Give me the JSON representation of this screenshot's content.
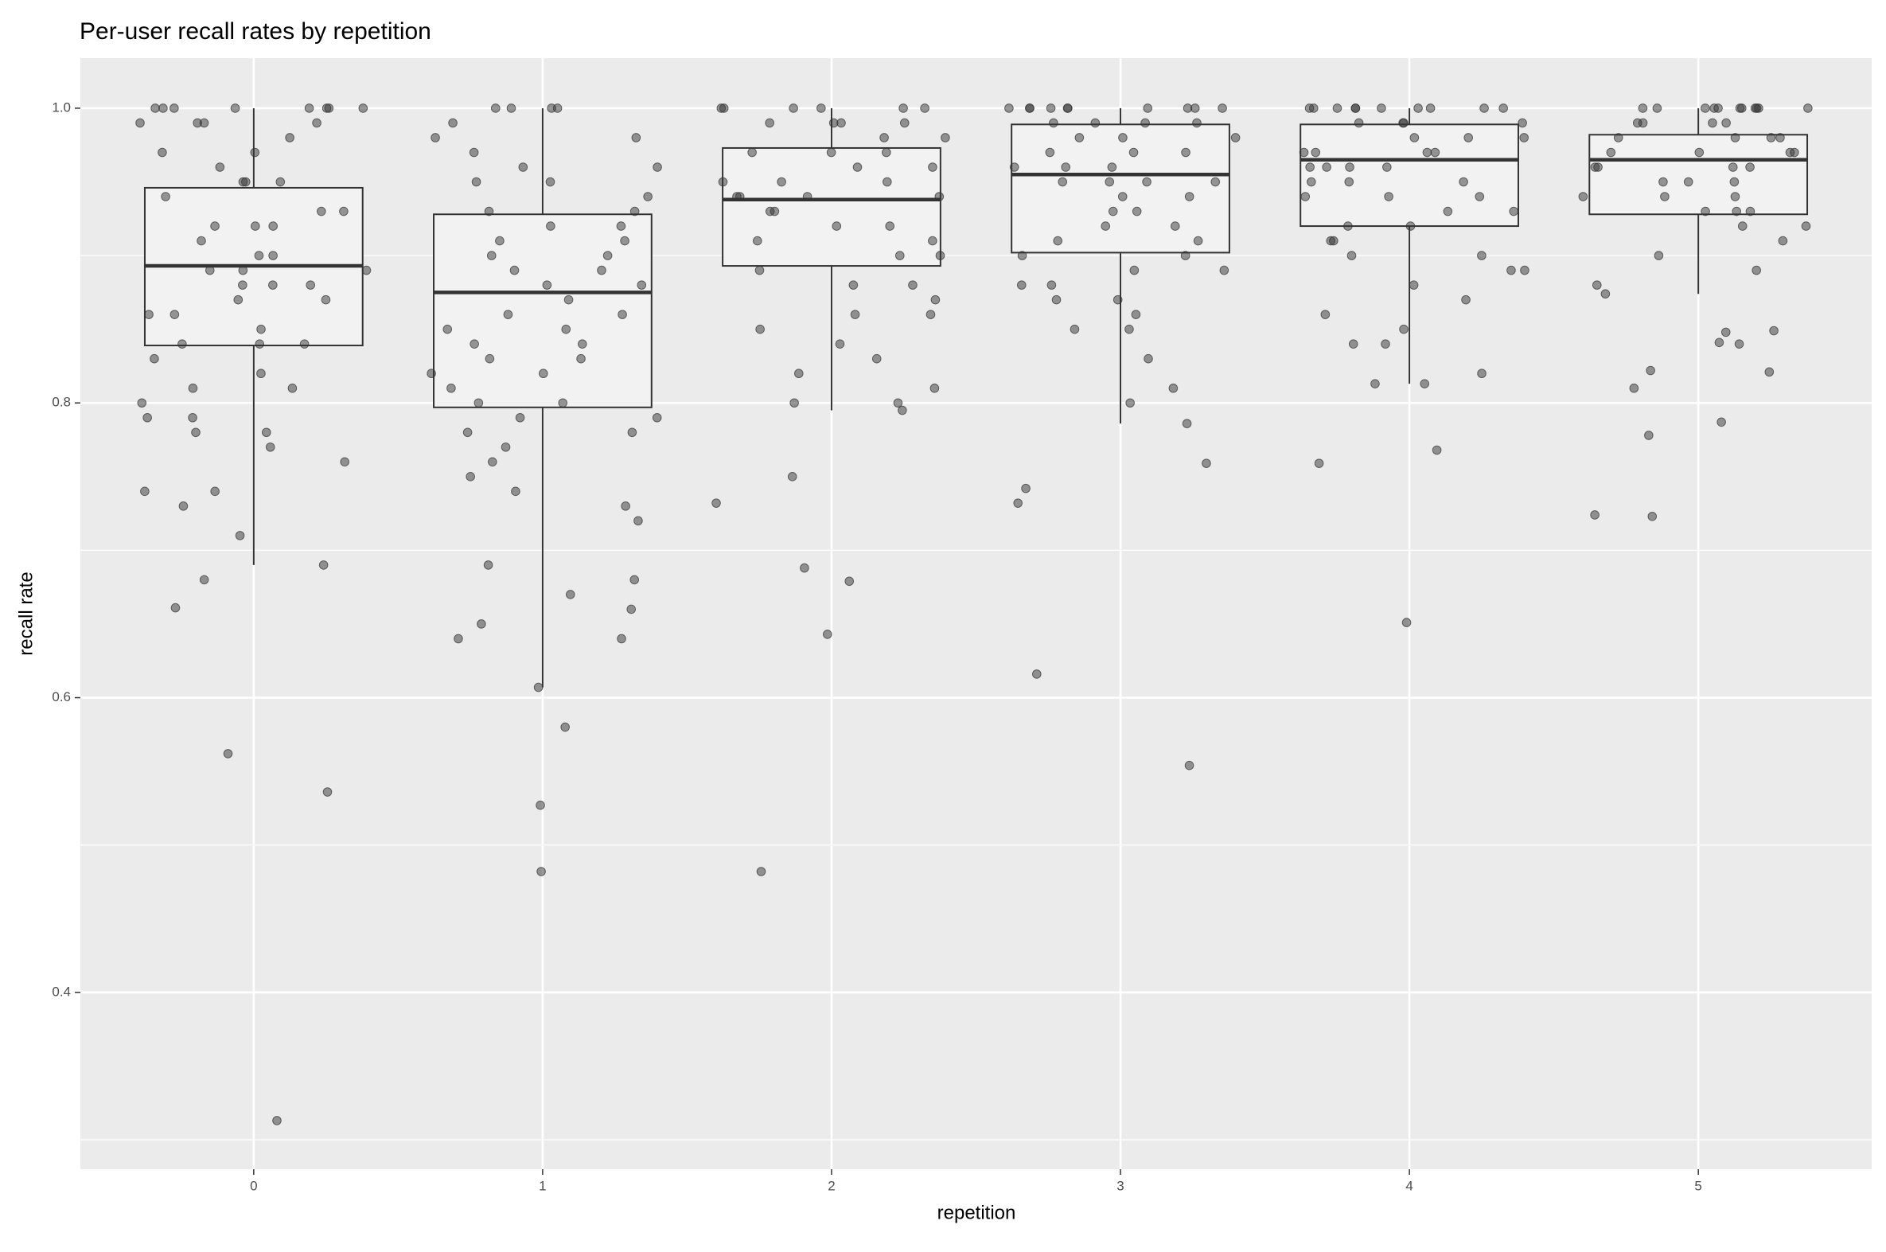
{
  "chart_data": {
    "type": "box",
    "title": "Per-user recall rates by repetition",
    "xlabel": "repetition",
    "ylabel": "recall rate",
    "categories": [
      "0",
      "1",
      "2",
      "3",
      "4",
      "5"
    ],
    "boxes": [
      {
        "lower": 0.69,
        "q1": 0.839,
        "median": 0.893,
        "q3": 0.946,
        "upper": 1.0
      },
      {
        "lower": 0.607,
        "q1": 0.797,
        "median": 0.875,
        "q3": 0.928,
        "upper": 1.0
      },
      {
        "lower": 0.795,
        "q1": 0.893,
        "median": 0.938,
        "q3": 0.973,
        "upper": 1.0
      },
      {
        "lower": 0.786,
        "q1": 0.902,
        "median": 0.955,
        "q3": 0.989,
        "upper": 1.0
      },
      {
        "lower": 0.813,
        "q1": 0.92,
        "median": 0.965,
        "q3": 0.989,
        "upper": 1.0
      },
      {
        "lower": 0.874,
        "q1": 0.928,
        "median": 0.965,
        "q3": 0.982,
        "upper": 1.0
      }
    ],
    "points": [
      [
        1,
        1,
        1,
        1,
        1,
        1,
        1,
        1,
        0.99,
        0.99,
        0.99,
        0.99,
        0.98,
        0.97,
        0.97,
        0.96,
        0.95,
        0.95,
        0.95,
        0.94,
        0.93,
        0.93,
        0.92,
        0.92,
        0.92,
        0.91,
        0.9,
        0.9,
        0.89,
        0.89,
        0.89,
        0.88,
        0.88,
        0.88,
        0.87,
        0.87,
        0.86,
        0.86,
        0.85,
        0.84,
        0.84,
        0.84,
        0.83,
        0.82,
        0.81,
        0.81,
        0.8,
        0.79,
        0.79,
        0.78,
        0.78,
        0.77,
        0.76,
        0.74,
        0.74,
        0.73,
        0.71,
        0.69,
        0.68,
        0.661,
        0.562,
        0.536,
        0.313
      ],
      [
        1,
        1,
        1,
        1,
        0.99,
        0.98,
        0.98,
        0.97,
        0.96,
        0.96,
        0.95,
        0.95,
        0.94,
        0.93,
        0.93,
        0.92,
        0.92,
        0.91,
        0.91,
        0.9,
        0.9,
        0.89,
        0.89,
        0.88,
        0.88,
        0.87,
        0.86,
        0.86,
        0.85,
        0.85,
        0.84,
        0.84,
        0.83,
        0.83,
        0.82,
        0.82,
        0.81,
        0.8,
        0.8,
        0.79,
        0.79,
        0.78,
        0.78,
        0.77,
        0.76,
        0.75,
        0.74,
        0.73,
        0.72,
        0.69,
        0.68,
        0.67,
        0.66,
        0.65,
        0.64,
        0.64,
        0.607,
        0.58,
        0.527,
        0.482
      ],
      [
        1,
        1,
        1,
        1,
        1,
        1,
        0.99,
        0.99,
        0.99,
        0.99,
        0.98,
        0.98,
        0.97,
        0.97,
        0.97,
        0.96,
        0.96,
        0.95,
        0.95,
        0.95,
        0.94,
        0.94,
        0.94,
        0.94,
        0.93,
        0.93,
        0.92,
        0.92,
        0.91,
        0.91,
        0.9,
        0.9,
        0.89,
        0.88,
        0.88,
        0.87,
        0.86,
        0.86,
        0.85,
        0.84,
        0.83,
        0.82,
        0.81,
        0.8,
        0.8,
        0.795,
        0.75,
        0.732,
        0.688,
        0.679,
        0.643,
        0.482
      ],
      [
        1,
        1,
        1,
        1,
        1,
        1,
        1,
        1,
        1,
        1,
        0.99,
        0.99,
        0.99,
        0.99,
        0.98,
        0.98,
        0.98,
        0.97,
        0.97,
        0.97,
        0.96,
        0.96,
        0.96,
        0.95,
        0.95,
        0.95,
        0.95,
        0.94,
        0.94,
        0.93,
        0.93,
        0.92,
        0.92,
        0.91,
        0.91,
        0.9,
        0.9,
        0.89,
        0.89,
        0.88,
        0.88,
        0.87,
        0.87,
        0.86,
        0.85,
        0.85,
        0.83,
        0.81,
        0.8,
        0.786,
        0.759,
        0.742,
        0.732,
        0.616,
        0.554
      ],
      [
        1,
        1,
        1,
        1,
        1,
        1,
        1,
        1,
        1,
        1,
        0.99,
        0.99,
        0.99,
        0.99,
        0.98,
        0.98,
        0.98,
        0.97,
        0.97,
        0.97,
        0.97,
        0.96,
        0.96,
        0.96,
        0.96,
        0.95,
        0.95,
        0.95,
        0.94,
        0.94,
        0.94,
        0.93,
        0.93,
        0.92,
        0.92,
        0.91,
        0.91,
        0.9,
        0.9,
        0.89,
        0.89,
        0.88,
        0.87,
        0.86,
        0.85,
        0.84,
        0.84,
        0.82,
        0.813,
        0.813,
        0.768,
        0.759,
        0.651
      ],
      [
        1,
        1,
        1,
        1,
        1,
        1,
        1,
        1,
        1,
        1,
        1,
        0.99,
        0.99,
        0.99,
        0.99,
        0.98,
        0.98,
        0.98,
        0.98,
        0.97,
        0.97,
        0.97,
        0.97,
        0.96,
        0.96,
        0.96,
        0.96,
        0.95,
        0.95,
        0.95,
        0.94,
        0.94,
        0.94,
        0.93,
        0.93,
        0.93,
        0.92,
        0.92,
        0.91,
        0.9,
        0.89,
        0.88,
        0.874,
        0.849,
        0.848,
        0.841,
        0.84,
        0.822,
        0.821,
        0.81,
        0.787,
        0.778,
        0.724,
        0.723
      ]
    ],
    "point_color": "#333333",
    "point_opacity": 0.5,
    "box_fill": "#f2f2f2",
    "box_stroke": "#333333",
    "ylim": [
      0.28,
      1.034
    ],
    "yticks": [
      0.4,
      0.6,
      0.8,
      {
        "value": 1.0,
        "label": "1.0"
      }
    ],
    "y_minor_grid": [
      0.3,
      0.5,
      0.7,
      0.9
    ],
    "grid": true
  }
}
